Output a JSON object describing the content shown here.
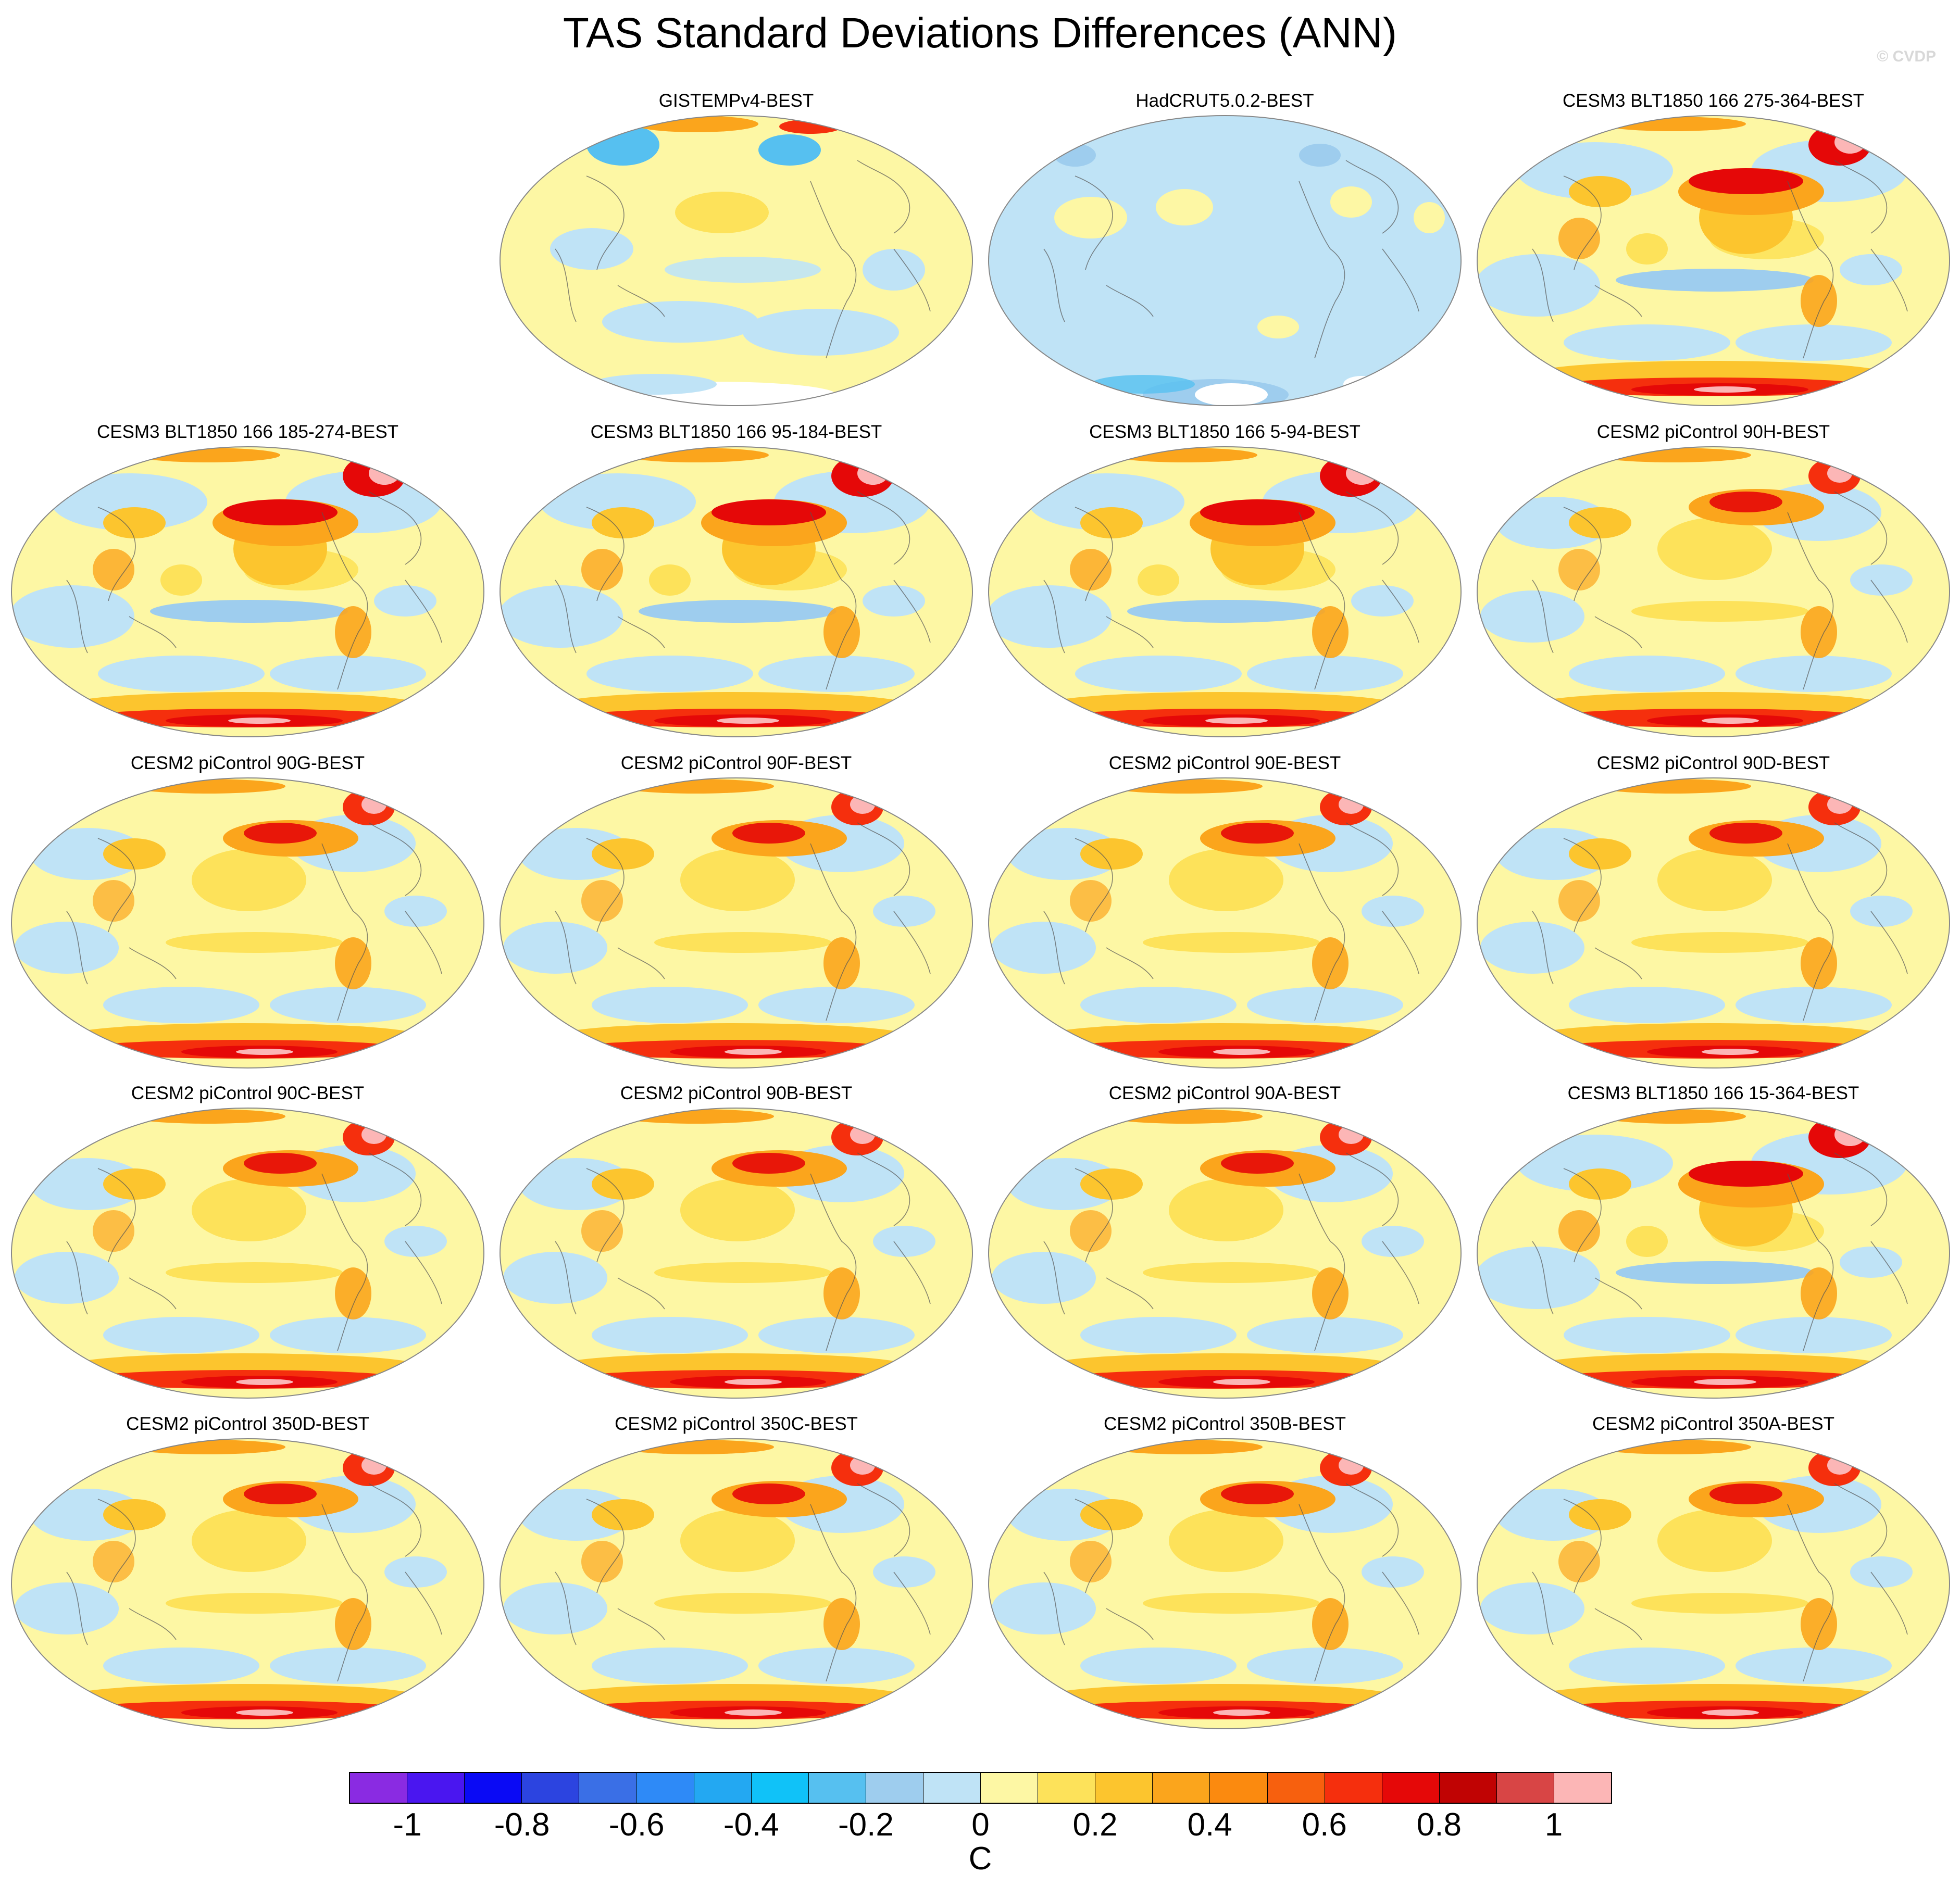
{
  "title": "TAS Standard Deviations Differences (ANN)",
  "copyright": "© CVDP",
  "panels": [
    {
      "title": "GISTEMPv4-BEST",
      "pattern": "obs1"
    },
    {
      "title": "HadCRUT5.0.2-BEST",
      "pattern": "obs2"
    },
    {
      "title": "CESM3 BLT1850 166 275-364-BEST",
      "pattern": "cesm3"
    },
    {
      "title": "CESM3 BLT1850 166 185-274-BEST",
      "pattern": "cesm3"
    },
    {
      "title": "CESM3 BLT1850 166 95-184-BEST",
      "pattern": "cesm3"
    },
    {
      "title": "CESM3 BLT1850 166 5-94-BEST",
      "pattern": "cesm3"
    },
    {
      "title": "CESM2 piControl 90H-BEST",
      "pattern": "cesm2"
    },
    {
      "title": "CESM2 piControl 90G-BEST",
      "pattern": "cesm2"
    },
    {
      "title": "CESM2 piControl 90F-BEST",
      "pattern": "cesm2"
    },
    {
      "title": "CESM2 piControl 90E-BEST",
      "pattern": "cesm2"
    },
    {
      "title": "CESM2 piControl 90D-BEST",
      "pattern": "cesm2"
    },
    {
      "title": "CESM2 piControl 90C-BEST",
      "pattern": "cesm2"
    },
    {
      "title": "CESM2 piControl 90B-BEST",
      "pattern": "cesm2"
    },
    {
      "title": "CESM2 piControl 90A-BEST",
      "pattern": "cesm2"
    },
    {
      "title": "CESM3 BLT1850 166 15-364-BEST",
      "pattern": "cesm3"
    },
    {
      "title": "CESM2 piControl 350D-BEST",
      "pattern": "cesm2"
    },
    {
      "title": "CESM2 piControl 350C-BEST",
      "pattern": "cesm2"
    },
    {
      "title": "CESM2 piControl 350B-BEST",
      "pattern": "cesm2"
    },
    {
      "title": "CESM2 piControl 350A-BEST",
      "pattern": "cesm2"
    }
  ],
  "colorbar": {
    "unit": "C",
    "colors": [
      "#8a2be2",
      "#4a16f0",
      "#0a0af5",
      "#2c44e0",
      "#3a6fe6",
      "#2e8af7",
      "#23a8f2",
      "#10c2f8",
      "#56c0f0",
      "#9ecdee",
      "#bfe3f6",
      "#fdf7a4",
      "#fde25a",
      "#fcc52e",
      "#fba51c",
      "#fb8a0f",
      "#f7600e",
      "#f52f0d",
      "#e50808",
      "#c00303",
      "#d84545",
      "#fcb6b6"
    ],
    "labels": [
      "-1",
      "-0.8",
      "-0.6",
      "-0.4",
      "-0.2",
      "0",
      "0.2",
      "0.4",
      "0.6",
      "0.8",
      "1"
    ]
  }
}
